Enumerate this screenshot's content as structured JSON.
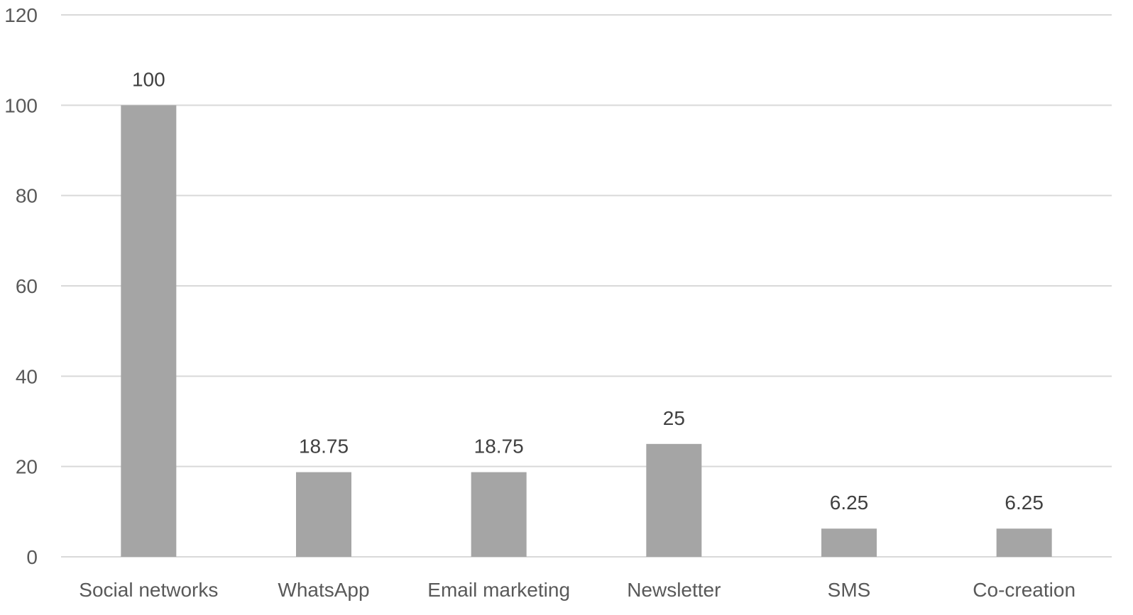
{
  "chart_data": {
    "type": "bar",
    "categories": [
      "Social networks",
      "WhatsApp",
      "Email marketing",
      "Newsletter",
      "SMS",
      "Co-creation"
    ],
    "values": [
      100,
      18.75,
      18.75,
      25,
      6.25,
      6.25
    ],
    "data_labels": [
      "100",
      "18.75",
      "18.75",
      "25",
      "6.25",
      "6.25"
    ],
    "yticks": [
      "0",
      "20",
      "40",
      "60",
      "80",
      "100",
      "120"
    ],
    "ylim": [
      0,
      120
    ],
    "grid": true,
    "legend": "none",
    "title": "",
    "xlabel": "",
    "ylabel": "",
    "bar_color": "#a5a5a5"
  }
}
